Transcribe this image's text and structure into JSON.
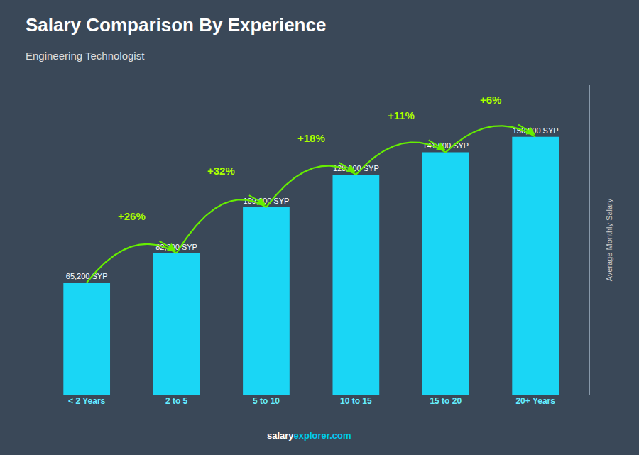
{
  "chart_data": {
    "type": "bar",
    "title": "Salary Comparison By Experience",
    "subtitle": "Engineering Technologist",
    "ylabel": "Average Monthly Salary",
    "categories": [
      "< 2 Years",
      "2 to 5",
      "5 to 10",
      "10 to 15",
      "15 to 20",
      "20+ Years"
    ],
    "values": [
      65200,
      82300,
      109000,
      128000,
      141000,
      150000
    ],
    "value_labels": [
      "65,200 SYP",
      "82,300 SYP",
      "109,000 SYP",
      "128,000 SYP",
      "141,000 SYP",
      "150,000 SYP"
    ],
    "data_labels": true,
    "annotations": [
      "+26%",
      "+32%",
      "+18%",
      "+11%",
      "+6%"
    ],
    "watermark": [
      "salary",
      "explorer.com"
    ],
    "color": "#1ad6f5",
    "ylim": [
      0,
      180000
    ],
    "tick_labels": "x",
    "grid": false
  }
}
